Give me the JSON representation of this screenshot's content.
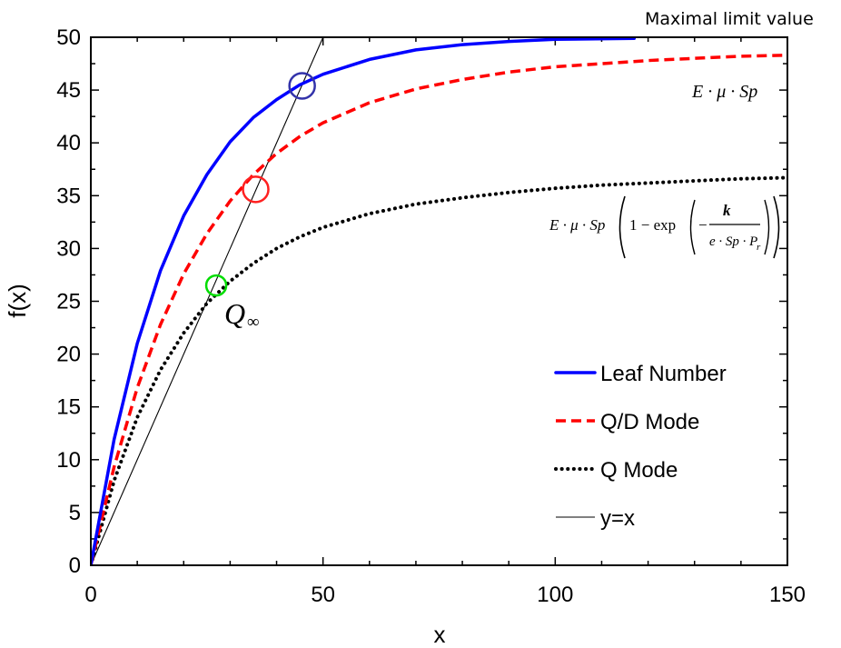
{
  "chart_data": {
    "type": "line",
    "xlabel": "x",
    "ylabel": "f(x)",
    "xlim": [
      0,
      150
    ],
    "ylim": [
      0,
      50
    ],
    "x_major_ticks": [
      0,
      50,
      100,
      150
    ],
    "y_major_ticks": [
      0,
      5,
      10,
      15,
      20,
      25,
      30,
      35,
      40,
      45,
      50
    ],
    "x_tick_labels": [
      "0",
      "50",
      "100",
      "150"
    ],
    "y_tick_labels": [
      "0",
      "5",
      "10",
      "15",
      "20",
      "25",
      "30",
      "35",
      "40",
      "45",
      "50"
    ],
    "grid": false,
    "legend_position": "bottom-right",
    "series": [
      {
        "name": "Leaf Number",
        "color": "#0000ff",
        "style": "solid",
        "x": [
          0,
          5,
          10,
          15,
          20,
          25,
          30,
          35,
          40,
          45,
          50,
          60,
          70,
          80,
          90,
          100,
          117
        ],
        "y": [
          0,
          11.9,
          21.0,
          27.9,
          33.1,
          37.0,
          40.1,
          42.4,
          44.1,
          45.5,
          46.5,
          47.9,
          48.8,
          49.3,
          49.6,
          49.8,
          49.9
        ]
      },
      {
        "name": "Q/D Mode",
        "color": "#ff0000",
        "style": "dashed",
        "x": [
          0,
          5,
          10,
          15,
          20,
          25,
          30,
          35,
          40,
          45,
          50,
          60,
          70,
          80,
          90,
          100,
          110,
          120,
          130,
          140,
          150
        ],
        "y": [
          0,
          9.3,
          16.8,
          22.8,
          27.6,
          31.4,
          34.5,
          37.0,
          39.0,
          40.6,
          41.9,
          43.8,
          45.1,
          46.0,
          46.7,
          47.2,
          47.5,
          47.8,
          48.0,
          48.2,
          48.3
        ]
      },
      {
        "name": "Q Mode",
        "color": "#000000",
        "style": "dotted",
        "x": [
          0,
          5,
          10,
          15,
          20,
          25,
          30,
          35,
          40,
          45,
          50,
          60,
          70,
          80,
          90,
          100,
          110,
          120,
          130,
          140,
          150
        ],
        "y": [
          0,
          8.0,
          14.0,
          18.5,
          22.0,
          24.8,
          26.9,
          28.6,
          30.0,
          31.1,
          32.0,
          33.3,
          34.2,
          34.8,
          35.3,
          35.7,
          36.0,
          36.2,
          36.4,
          36.6,
          36.7
        ]
      },
      {
        "name": "y=x",
        "color": "#000000",
        "style": "thin",
        "x": [
          0,
          50
        ],
        "y": [
          0,
          50
        ]
      }
    ],
    "annotations": [
      {
        "id": "marker-leaf",
        "type": "circle",
        "x": 45.5,
        "y": 45.4,
        "color": "#3333aa"
      },
      {
        "id": "marker-qd",
        "type": "circle",
        "x": 35.5,
        "y": 35.6,
        "color": "#ff2020"
      },
      {
        "id": "marker-q",
        "type": "circle",
        "x": 27,
        "y": 26.5,
        "color": "#00dd00"
      }
    ],
    "labels": {
      "top_note": "Maximal limit value",
      "q_infinity": "Q",
      "q_infinity_sub": "∞",
      "formula_upper": "E · μ · Sp",
      "formula_lower_prefix": "E · μ · Sp",
      "formula_lower_inner": "1 − exp",
      "formula_lower_minus": "−",
      "formula_lower_num": "k",
      "formula_lower_den": "e · Sp · P",
      "formula_lower_den_sub": "r"
    }
  }
}
